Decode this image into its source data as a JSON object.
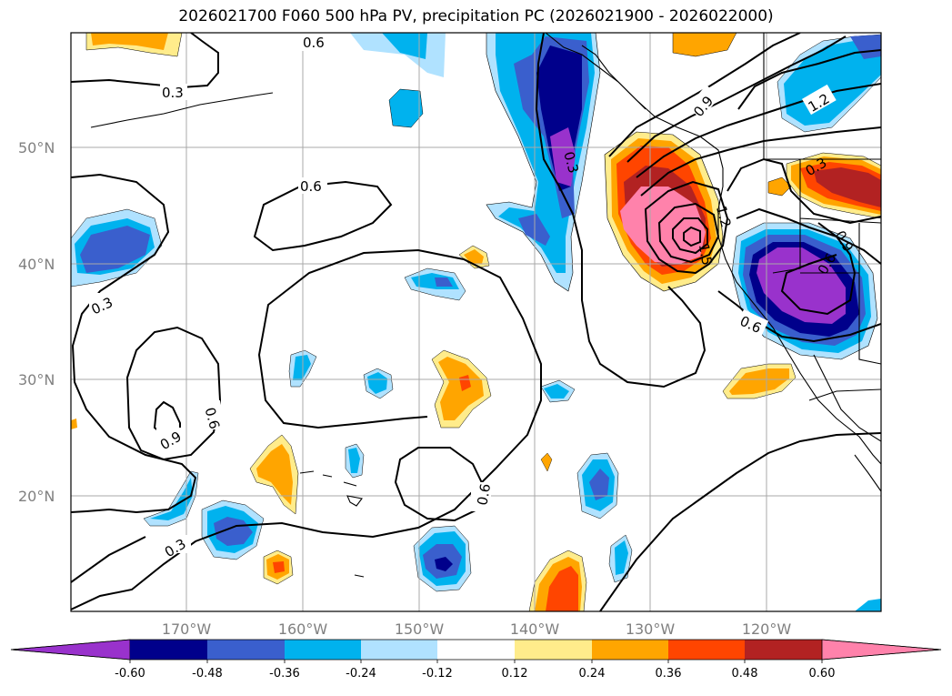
{
  "title": "2026021700 F060 500 hPa PV, precipitation PC (2026021900 - 2026022000)",
  "lat_labels": [
    "50°N",
    "40°N",
    "30°N",
    "20°N"
  ],
  "lon_labels": [
    "170°W",
    "160°W",
    "150°W",
    "140°W",
    "130°W",
    "120°W"
  ],
  "contour_labels": [
    "0.6",
    "0.3",
    "0.6",
    "0.3",
    "0.9",
    "0.6",
    "0.3",
    "0.6",
    "0.3",
    "0.9",
    "1.2",
    "1.2",
    "0.3",
    "0.9",
    "0.6",
    "0.6",
    "1.5"
  ],
  "colorbar": {
    "ticks": [
      "-0.60",
      "-0.48",
      "-0.36",
      "-0.24",
      "-0.12",
      "0.12",
      "0.24",
      "0.36",
      "0.48",
      "0.60"
    ],
    "colors": {
      "lt_-0.60": "#9932cc",
      "-0.60_-0.48": "#00008b",
      "-0.48_-0.36": "#3a5fcd",
      "-0.36_-0.24": "#00b2ee",
      "-0.24_-0.12": "#b0e2ff",
      "-0.12_0.12": "#ffffff",
      "0.12_0.24": "#ffec8b",
      "0.24_0.36": "#ffa500",
      "0.36_0.48": "#ff4500",
      "0.48_0.60": "#b22222",
      "gt_0.60": "#ff82ab"
    }
  }
}
